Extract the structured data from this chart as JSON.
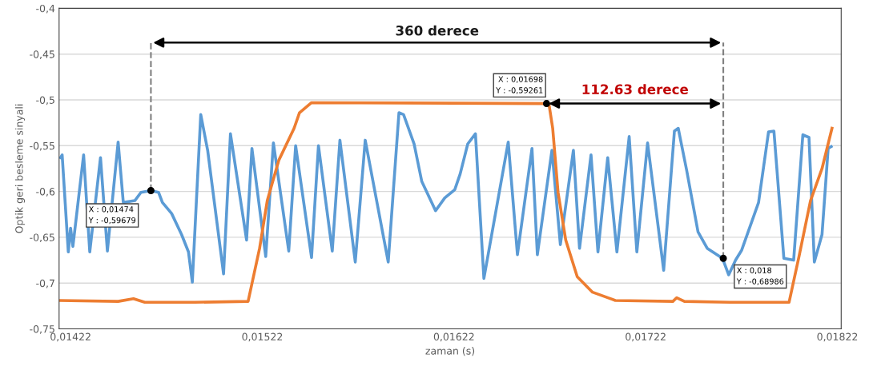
{
  "chart_data": {
    "type": "line",
    "xlabel": "zaman (s)",
    "ylabel": "Optik geri besleme sinyali",
    "xlim": [
      0.01416,
      0.01824
    ],
    "ylim": [
      -0.75,
      -0.4
    ],
    "xticks": [
      {
        "value": 0.01422,
        "label": "0,01422"
      },
      {
        "value": 0.01522,
        "label": "0,01522"
      },
      {
        "value": 0.01622,
        "label": "0,01622"
      },
      {
        "value": 0.01722,
        "label": "0,01722"
      },
      {
        "value": 0.01822,
        "label": "0,01822"
      }
    ],
    "yticks": [
      {
        "value": -0.75,
        "label": "-0,75"
      },
      {
        "value": -0.7,
        "label": "-0,7"
      },
      {
        "value": -0.65,
        "label": "-0,65"
      },
      {
        "value": -0.6,
        "label": "-0,6"
      },
      {
        "value": -0.55,
        "label": "-0,55"
      },
      {
        "value": -0.5,
        "label": "-0,5"
      },
      {
        "value": -0.45,
        "label": "-0,45"
      },
      {
        "value": -0.4,
        "label": "-0,4"
      }
    ],
    "grid": "y",
    "legend": false,
    "marker": "none",
    "line_style": "solid",
    "series": [
      {
        "color": "#5b9bd5",
        "x": [
          0.014168,
          0.014176,
          0.014208,
          0.01422,
          0.014232,
          0.014288,
          0.01432,
          0.014376,
          0.014412,
          0.014468,
          0.014495,
          0.014555,
          0.014587,
          0.014639,
          0.014679,
          0.014699,
          0.014747,
          0.014799,
          0.014835,
          0.014855,
          0.014899,
          0.014935,
          0.015018,
          0.015054,
          0.015138,
          0.015166,
          0.015238,
          0.015278,
          0.015358,
          0.015394,
          0.015477,
          0.015513,
          0.015585,
          0.015625,
          0.015705,
          0.015757,
          0.015877,
          0.015933,
          0.015957,
          0.016012,
          0.016052,
          0.016124,
          0.016172,
          0.016224,
          0.016252,
          0.016292,
          0.016332,
          0.016376,
          0.016503,
          0.016551,
          0.016627,
          0.016655,
          0.016731,
          0.016775,
          0.016843,
          0.016875,
          0.016935,
          0.016971,
          0.017022,
          0.01707,
          0.017134,
          0.017174,
          0.01723,
          0.017314,
          0.01737,
          0.01739,
          0.017434,
          0.017493,
          0.017541,
          0.017621,
          0.017653,
          0.017689,
          0.017721,
          0.017809,
          0.017861,
          0.017889,
          0.017941,
          0.017992,
          0.01804,
          0.018072,
          0.0181,
          0.01814,
          0.018172,
          0.018188
        ],
        "values": [
          -0.563,
          -0.56,
          -0.666,
          -0.64,
          -0.66,
          -0.56,
          -0.666,
          -0.563,
          -0.665,
          -0.546,
          -0.612,
          -0.61,
          -0.601,
          -0.599,
          -0.601,
          -0.612,
          -0.624,
          -0.647,
          -0.666,
          -0.699,
          -0.516,
          -0.555,
          -0.69,
          -0.537,
          -0.653,
          -0.553,
          -0.671,
          -0.547,
          -0.665,
          -0.55,
          -0.672,
          -0.55,
          -0.665,
          -0.544,
          -0.677,
          -0.544,
          -0.677,
          -0.514,
          -0.516,
          -0.548,
          -0.589,
          -0.621,
          -0.607,
          -0.598,
          -0.581,
          -0.548,
          -0.537,
          -0.695,
          -0.546,
          -0.669,
          -0.553,
          -0.669,
          -0.555,
          -0.658,
          -0.555,
          -0.662,
          -0.56,
          -0.666,
          -0.563,
          -0.666,
          -0.54,
          -0.666,
          -0.547,
          -0.686,
          -0.534,
          -0.531,
          -0.577,
          -0.644,
          -0.662,
          -0.673,
          -0.691,
          -0.675,
          -0.664,
          -0.612,
          -0.535,
          -0.534,
          -0.673,
          -0.675,
          -0.538,
          -0.541,
          -0.677,
          -0.647,
          -0.553,
          -0.551
        ]
      },
      {
        "color": "#ed7d31",
        "x": [
          0.014164,
          0.014468,
          0.014548,
          0.014607,
          0.014867,
          0.015146,
          0.015206,
          0.015246,
          0.015306,
          0.015386,
          0.015414,
          0.015477,
          0.016715,
          0.016735,
          0.016763,
          0.016803,
          0.016863,
          0.016943,
          0.017062,
          0.017362,
          0.017382,
          0.017422,
          0.017661,
          0.017968,
          0.01802,
          0.01808,
          0.01814,
          0.018192
        ],
        "values": [
          -0.719,
          -0.72,
          -0.717,
          -0.721,
          -0.721,
          -0.72,
          -0.662,
          -0.61,
          -0.566,
          -0.531,
          -0.514,
          -0.503,
          -0.504,
          -0.531,
          -0.601,
          -0.653,
          -0.693,
          -0.71,
          -0.719,
          -0.72,
          -0.716,
          -0.72,
          -0.721,
          -0.721,
          -0.671,
          -0.61,
          -0.575,
          -0.531
        ]
      }
    ],
    "ref_lines": [
      {
        "axis": "x",
        "value": 0.014639,
        "color": "#7f7f7f",
        "line_style": "dashed"
      },
      {
        "axis": "x",
        "value": 0.017625,
        "color": "#7f7f7f",
        "line_style": "dashed"
      }
    ],
    "annotations": [
      {
        "text": "X : 0,01474\nY : -0,59679",
        "x": 0.014639,
        "y": -0.599
      },
      {
        "text": "X : 0,01698\nY : -0,59261",
        "x": 0.016703,
        "y": -0.504
      },
      {
        "text": "X : 0,018\nY : -0,68986",
        "x": 0.017625,
        "y": -0.673
      },
      "360 derece",
      "112.63 derece"
    ]
  }
}
